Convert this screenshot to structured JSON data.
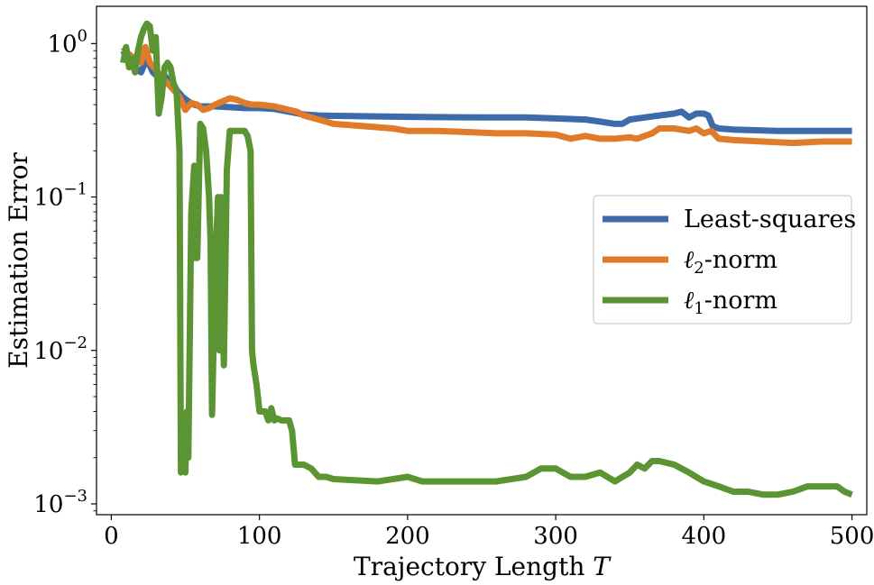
{
  "chart_data": {
    "type": "line",
    "title": "",
    "xlabel": "Trajectory Length",
    "xlabel_var": "T",
    "ylabel": "Estimation Error",
    "yscale": "log",
    "xlim": [
      -10,
      510
    ],
    "ylim": [
      0.00085,
      1.75
    ],
    "x_ticks": [
      0,
      100,
      200,
      300,
      400,
      500
    ],
    "y_ticks": [
      {
        "value": 1.0,
        "base": "10",
        "exp": "0"
      },
      {
        "value": 0.1,
        "base": "10",
        "exp": "−1"
      },
      {
        "value": 0.01,
        "base": "10",
        "exp": "−2"
      },
      {
        "value": 0.001,
        "base": "10",
        "exp": "−3"
      }
    ],
    "legend_position": "center-right",
    "series": [
      {
        "name": "Least-squares",
        "legend": {
          "main": "Least-squares",
          "sub": "",
          "suffix": ""
        },
        "color": "#3d6aa9",
        "points": [
          [
            8,
            0.9
          ],
          [
            12,
            0.75
          ],
          [
            16,
            0.7
          ],
          [
            20,
            0.65
          ],
          [
            24,
            0.8
          ],
          [
            28,
            0.65
          ],
          [
            32,
            0.6
          ],
          [
            36,
            0.62
          ],
          [
            40,
            0.55
          ],
          [
            44,
            0.5
          ],
          [
            48,
            0.45
          ],
          [
            52,
            0.42
          ],
          [
            56,
            0.4
          ],
          [
            60,
            0.39
          ],
          [
            70,
            0.39
          ],
          [
            80,
            0.385
          ],
          [
            90,
            0.38
          ],
          [
            100,
            0.38
          ],
          [
            110,
            0.375
          ],
          [
            120,
            0.36
          ],
          [
            130,
            0.345
          ],
          [
            140,
            0.34
          ],
          [
            150,
            0.338
          ],
          [
            200,
            0.333
          ],
          [
            250,
            0.33
          ],
          [
            280,
            0.33
          ],
          [
            300,
            0.325
          ],
          [
            320,
            0.32
          ],
          [
            330,
            0.31
          ],
          [
            340,
            0.3
          ],
          [
            345,
            0.3
          ],
          [
            350,
            0.32
          ],
          [
            360,
            0.33
          ],
          [
            370,
            0.34
          ],
          [
            380,
            0.35
          ],
          [
            385,
            0.36
          ],
          [
            390,
            0.33
          ],
          [
            395,
            0.35
          ],
          [
            400,
            0.35
          ],
          [
            403,
            0.34
          ],
          [
            406,
            0.29
          ],
          [
            410,
            0.28
          ],
          [
            420,
            0.275
          ],
          [
            450,
            0.27
          ],
          [
            500,
            0.27
          ]
        ]
      },
      {
        "name": "ℓ2-norm",
        "legend": {
          "main": "ℓ",
          "sub": "2",
          "suffix": "-norm"
        },
        "color": "#e07b2a",
        "points": [
          [
            8,
            0.95
          ],
          [
            12,
            0.85
          ],
          [
            16,
            0.8
          ],
          [
            20,
            0.75
          ],
          [
            23,
            0.95
          ],
          [
            26,
            0.75
          ],
          [
            30,
            0.68
          ],
          [
            34,
            0.6
          ],
          [
            38,
            0.55
          ],
          [
            42,
            0.5
          ],
          [
            46,
            0.45
          ],
          [
            50,
            0.37
          ],
          [
            54,
            0.41
          ],
          [
            58,
            0.4
          ],
          [
            62,
            0.37
          ],
          [
            66,
            0.38
          ],
          [
            70,
            0.4
          ],
          [
            75,
            0.42
          ],
          [
            80,
            0.44
          ],
          [
            85,
            0.43
          ],
          [
            90,
            0.41
          ],
          [
            95,
            0.4
          ],
          [
            100,
            0.4
          ],
          [
            110,
            0.39
          ],
          [
            120,
            0.37
          ],
          [
            125,
            0.36
          ],
          [
            130,
            0.34
          ],
          [
            140,
            0.32
          ],
          [
            150,
            0.3
          ],
          [
            170,
            0.29
          ],
          [
            190,
            0.28
          ],
          [
            200,
            0.27
          ],
          [
            220,
            0.27
          ],
          [
            240,
            0.265
          ],
          [
            260,
            0.26
          ],
          [
            280,
            0.26
          ],
          [
            300,
            0.255
          ],
          [
            310,
            0.24
          ],
          [
            320,
            0.25
          ],
          [
            330,
            0.24
          ],
          [
            340,
            0.24
          ],
          [
            350,
            0.245
          ],
          [
            355,
            0.24
          ],
          [
            360,
            0.25
          ],
          [
            365,
            0.26
          ],
          [
            370,
            0.28
          ],
          [
            380,
            0.28
          ],
          [
            390,
            0.27
          ],
          [
            395,
            0.28
          ],
          [
            400,
            0.26
          ],
          [
            405,
            0.27
          ],
          [
            410,
            0.24
          ],
          [
            420,
            0.235
          ],
          [
            440,
            0.23
          ],
          [
            460,
            0.225
          ],
          [
            480,
            0.23
          ],
          [
            500,
            0.23
          ]
        ]
      },
      {
        "name": "ℓ1-norm",
        "legend": {
          "main": "ℓ",
          "sub": "1",
          "suffix": "-norm"
        },
        "color": "#5b9432",
        "points": [
          [
            8,
            0.75
          ],
          [
            10,
            0.95
          ],
          [
            12,
            0.7
          ],
          [
            14,
            0.8
          ],
          [
            16,
            0.65
          ],
          [
            18,
            0.9
          ],
          [
            20,
            1.1
          ],
          [
            22,
            1.25
          ],
          [
            24,
            1.35
          ],
          [
            26,
            1.3
          ],
          [
            28,
            0.9
          ],
          [
            30,
            1.1
          ],
          [
            32,
            0.35
          ],
          [
            34,
            0.45
          ],
          [
            36,
            0.7
          ],
          [
            38,
            0.75
          ],
          [
            40,
            0.7
          ],
          [
            42,
            0.55
          ],
          [
            44,
            0.5
          ],
          [
            46,
            0.2
          ],
          [
            47,
            0.0016
          ],
          [
            48,
            0.002
          ],
          [
            49,
            0.0025
          ],
          [
            50,
            0.0016
          ],
          [
            51,
            0.004
          ],
          [
            52,
            0.002
          ],
          [
            54,
            0.08
          ],
          [
            56,
            0.16
          ],
          [
            57,
            0.04
          ],
          [
            58,
            0.04
          ],
          [
            60,
            0.3
          ],
          [
            62,
            0.28
          ],
          [
            64,
            0.2
          ],
          [
            66,
            0.1
          ],
          [
            67,
            0.05
          ],
          [
            68,
            0.0038
          ],
          [
            70,
            0.03
          ],
          [
            72,
            0.1
          ],
          [
            73,
            0.01
          ],
          [
            74,
            0.1
          ],
          [
            76,
            0.008
          ],
          [
            78,
            0.15
          ],
          [
            80,
            0.27
          ],
          [
            85,
            0.27
          ],
          [
            88,
            0.27
          ],
          [
            90,
            0.27
          ],
          [
            92,
            0.25
          ],
          [
            94,
            0.2
          ],
          [
            95,
            0.01
          ],
          [
            96,
            0.008
          ],
          [
            98,
            0.006
          ],
          [
            100,
            0.004
          ],
          [
            102,
            0.004
          ],
          [
            104,
            0.004
          ],
          [
            106,
            0.0035
          ],
          [
            108,
            0.0042
          ],
          [
            110,
            0.0035
          ],
          [
            112,
            0.0036
          ],
          [
            115,
            0.0035
          ],
          [
            120,
            0.0035
          ],
          [
            122,
            0.003
          ],
          [
            124,
            0.0018
          ],
          [
            130,
            0.0018
          ],
          [
            135,
            0.0017
          ],
          [
            140,
            0.0015
          ],
          [
            145,
            0.0015
          ],
          [
            150,
            0.00145
          ],
          [
            180,
            0.0014
          ],
          [
            200,
            0.0015
          ],
          [
            210,
            0.0014
          ],
          [
            260,
            0.0014
          ],
          [
            280,
            0.0015
          ],
          [
            290,
            0.0017
          ],
          [
            300,
            0.0017
          ],
          [
            310,
            0.0015
          ],
          [
            320,
            0.0015
          ],
          [
            330,
            0.0016
          ],
          [
            340,
            0.0014
          ],
          [
            350,
            0.0016
          ],
          [
            355,
            0.0018
          ],
          [
            360,
            0.0017
          ],
          [
            365,
            0.0019
          ],
          [
            370,
            0.0019
          ],
          [
            380,
            0.0018
          ],
          [
            390,
            0.0016
          ],
          [
            400,
            0.0014
          ],
          [
            410,
            0.0013
          ],
          [
            420,
            0.0012
          ],
          [
            430,
            0.0012
          ],
          [
            440,
            0.00115
          ],
          [
            450,
            0.00115
          ],
          [
            460,
            0.0012
          ],
          [
            470,
            0.0013
          ],
          [
            480,
            0.0013
          ],
          [
            490,
            0.0013
          ],
          [
            495,
            0.0012
          ],
          [
            500,
            0.00115
          ]
        ]
      }
    ]
  }
}
